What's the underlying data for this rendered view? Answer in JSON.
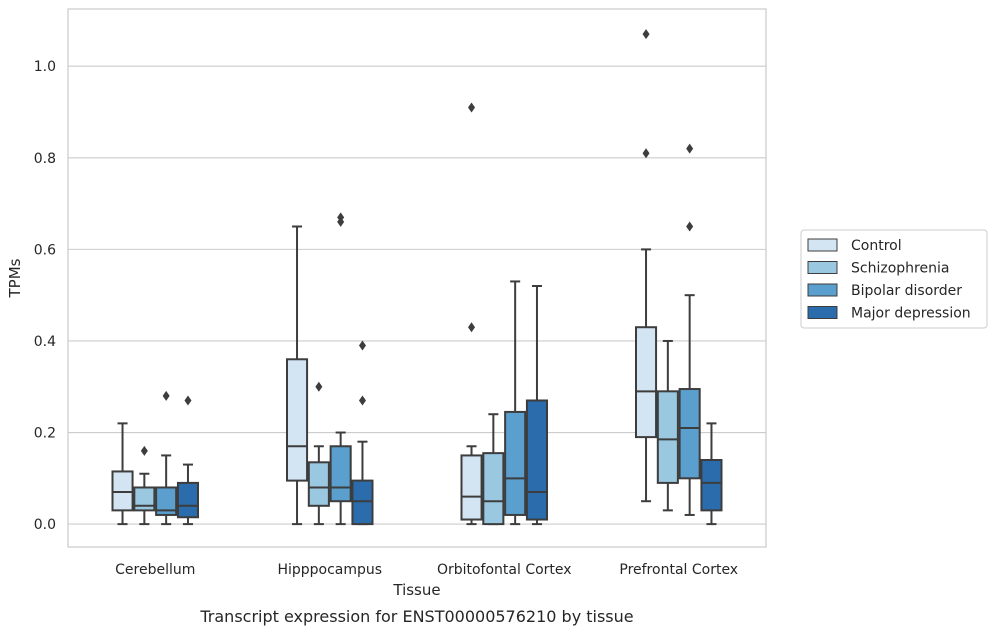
{
  "chart_data": {
    "type": "box",
    "title": "",
    "caption": "Transcript expression for ENST00000576210 by tissue",
    "xlabel": "Tissue",
    "ylabel": "TPMs",
    "ylim": [
      -0.05,
      1.125
    ],
    "yticks": [
      0.0,
      0.2,
      0.4,
      0.6,
      0.8,
      1.0
    ],
    "ytick_labels": [
      "0.0",
      "0.2",
      "0.4",
      "0.6",
      "0.8",
      "1.0"
    ],
    "grid": "horizontal",
    "legend_position": "right",
    "categories": [
      "Cerebellum",
      "Hipppocampus",
      "Orbitofontal Cortex",
      "Prefrontal Cortex"
    ],
    "series": [
      {
        "name": "Control",
        "color": "#d3e4f3",
        "boxes": [
          {
            "whislo": 0.0,
            "q1": 0.03,
            "med": 0.07,
            "q3": 0.115,
            "whishi": 0.22,
            "fliers": []
          },
          {
            "whislo": 0.0,
            "q1": 0.095,
            "med": 0.17,
            "q3": 0.36,
            "whishi": 0.65,
            "fliers": []
          },
          {
            "whislo": 0.0,
            "q1": 0.01,
            "med": 0.06,
            "q3": 0.15,
            "whishi": 0.17,
            "fliers": [
              0.43,
              0.91
            ]
          },
          {
            "whislo": 0.05,
            "q1": 0.19,
            "med": 0.29,
            "q3": 0.43,
            "whishi": 0.6,
            "fliers": [
              0.81,
              1.07
            ]
          }
        ]
      },
      {
        "name": "Schizophrenia",
        "color": "#9ac8e0",
        "boxes": [
          {
            "whislo": 0.0,
            "q1": 0.03,
            "med": 0.04,
            "q3": 0.08,
            "whishi": 0.11,
            "fliers": [
              0.16
            ]
          },
          {
            "whislo": 0.0,
            "q1": 0.04,
            "med": 0.08,
            "q3": 0.135,
            "whishi": 0.17,
            "fliers": [
              0.3
            ]
          },
          {
            "whislo": 0.0,
            "q1": 0.0,
            "med": 0.05,
            "q3": 0.155,
            "whishi": 0.24,
            "fliers": []
          },
          {
            "whislo": 0.03,
            "q1": 0.09,
            "med": 0.185,
            "q3": 0.29,
            "whishi": 0.4,
            "fliers": []
          }
        ]
      },
      {
        "name": "Bipolar disorder",
        "color": "#5a9fcd",
        "boxes": [
          {
            "whislo": 0.0,
            "q1": 0.02,
            "med": 0.03,
            "q3": 0.08,
            "whishi": 0.15,
            "fliers": [
              0.28
            ]
          },
          {
            "whislo": 0.0,
            "q1": 0.05,
            "med": 0.08,
            "q3": 0.17,
            "whishi": 0.2,
            "fliers": [
              0.66,
              0.67
            ]
          },
          {
            "whislo": 0.0,
            "q1": 0.02,
            "med": 0.1,
            "q3": 0.245,
            "whishi": 0.53,
            "fliers": []
          },
          {
            "whislo": 0.02,
            "q1": 0.1,
            "med": 0.21,
            "q3": 0.295,
            "whishi": 0.5,
            "fliers": [
              0.65,
              0.82
            ]
          }
        ]
      },
      {
        "name": "Major depression",
        "color": "#2a6cac",
        "boxes": [
          {
            "whislo": 0.0,
            "q1": 0.015,
            "med": 0.04,
            "q3": 0.09,
            "whishi": 0.13,
            "fliers": [
              0.27
            ]
          },
          {
            "whislo": 0.0,
            "q1": 0.0,
            "med": 0.05,
            "q3": 0.095,
            "whishi": 0.18,
            "fliers": [
              0.27,
              0.39
            ]
          },
          {
            "whislo": 0.0,
            "q1": 0.01,
            "med": 0.07,
            "q3": 0.27,
            "whishi": 0.52,
            "fliers": []
          },
          {
            "whislo": 0.0,
            "q1": 0.03,
            "med": 0.09,
            "q3": 0.14,
            "whishi": 0.22,
            "fliers": []
          }
        ]
      }
    ]
  }
}
